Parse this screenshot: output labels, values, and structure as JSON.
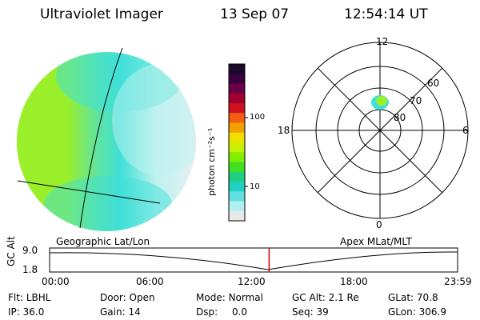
{
  "header": {
    "instrument": "Ultraviolet Imager",
    "date": "13 Sep 07",
    "time": "12:54:14 UT"
  },
  "colorbar": {
    "unit_label": "photon cm⁻²s⁻¹",
    "ticks": [
      "100",
      "10"
    ],
    "colors": [
      "#1a0a2a",
      "#3a0040",
      "#6a0048",
      "#a00030",
      "#d01020",
      "#f06010",
      "#f0a000",
      "#f0e000",
      "#c8f000",
      "#80f000",
      "#40e020",
      "#20d080",
      "#20d0c0",
      "#60e0e0",
      "#b0f0f0",
      "#e8e8e8"
    ]
  },
  "globe_image": {
    "colors": {
      "green": "#9aef2a",
      "cyan": "#40e0d8",
      "pale": "#bff2ef",
      "white": "#e6f0f0"
    }
  },
  "polar_plot": {
    "mlt_labels": {
      "top": "12",
      "left": "18",
      "right": "6",
      "bottom": "0"
    },
    "lat_labels": [
      "60",
      "70",
      "80"
    ]
  },
  "timeline": {
    "caption_left": "Geographic Lat/Lon",
    "caption_right": "Apex MLat/MLT",
    "y_axis_label": "GC Alt",
    "y_ticks": [
      "9.0",
      "1.8"
    ],
    "x_ticks": [
      "00:00",
      "06:00",
      "12:00",
      "18:00",
      "23:59"
    ],
    "marker_time_frac": 0.538,
    "marker_color": "#cc0000"
  },
  "status": {
    "row1": [
      {
        "label": "Flt:",
        "value": "LBHL"
      },
      {
        "label": "Door:",
        "value": "Open"
      },
      {
        "label": "Mode:",
        "value": "Normal"
      },
      {
        "label": "GC Alt:",
        "value": "2.1 Re"
      },
      {
        "label": "GLat:",
        "value": "70.8"
      }
    ],
    "row2": [
      {
        "label": "IP:",
        "value": "36.0"
      },
      {
        "label": "Gain:",
        "value": "14"
      },
      {
        "label": "Dsp:",
        "value": "0.0"
      },
      {
        "label": "Seq:",
        "value": "39"
      },
      {
        "label": "GLon:",
        "value": "306.9"
      }
    ]
  }
}
